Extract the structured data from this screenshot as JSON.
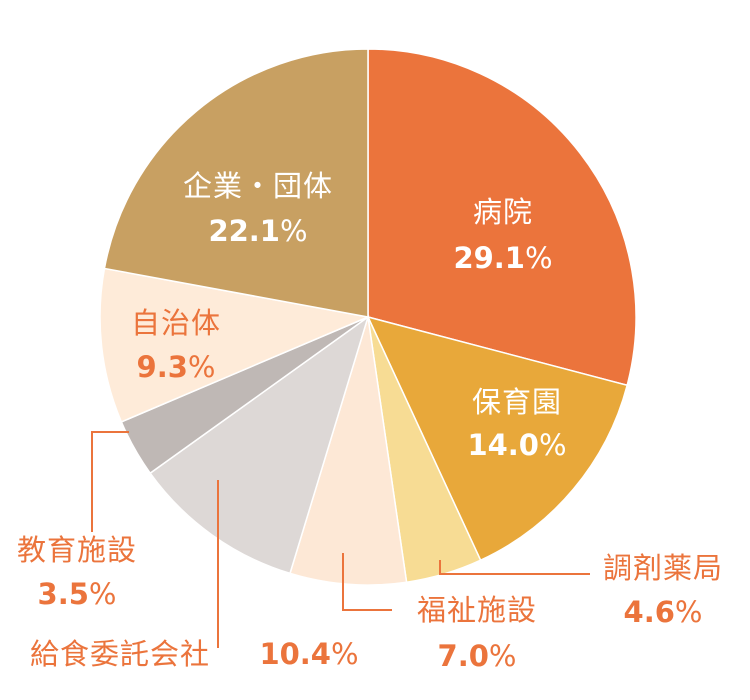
{
  "chart_data": {
    "type": "pie",
    "start": "top",
    "direction": "clockwise",
    "slices": [
      {
        "label": "病院",
        "value": 29.1,
        "display": "29.1",
        "color": "#EB743C",
        "text_color": "#FFFFFF"
      },
      {
        "label": "保育園",
        "value": 14.0,
        "display": "14.0",
        "color": "#E8A83A",
        "text_color": "#FFFFFF"
      },
      {
        "label": "調剤薬局",
        "value": 4.6,
        "display": "4.6",
        "color": "#F7DC94",
        "text_color": "#EB743C"
      },
      {
        "label": "福祉施設",
        "value": 7.0,
        "display": "7.0",
        "color": "#FDE8D6",
        "text_color": "#EB743C"
      },
      {
        "label": "給食委託会社",
        "value": 10.4,
        "display": "10.4",
        "color": "#DDD8D6",
        "text_color": "#EB743C"
      },
      {
        "label": "教育施設",
        "value": 3.5,
        "display": "3.5",
        "color": "#BFB8B5",
        "text_color": "#EB743C"
      },
      {
        "label": "自治体",
        "value": 9.3,
        "display": "9.3",
        "color": "#FEEBD9",
        "text_color": "#EB743C"
      },
      {
        "label": "企業・団体",
        "value": 22.1,
        "display": "22.1",
        "color": "#C8A062",
        "text_color": "#FFFFFF"
      }
    ],
    "unit": "%",
    "leader_color": "#EB743C"
  }
}
